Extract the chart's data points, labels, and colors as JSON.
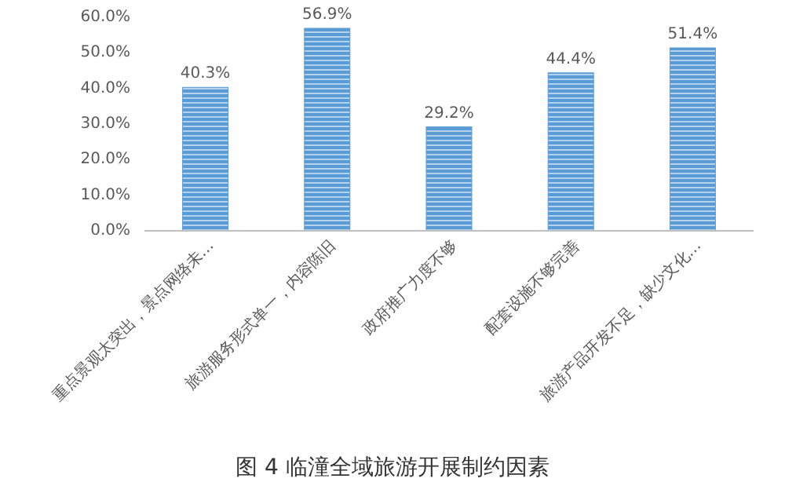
{
  "chart_data": {
    "type": "bar",
    "title": "图 4  临潼全域旅游开展制约因素",
    "categories": [
      "重点景观太突出，景点网络未…",
      "旅游服务形式单一，内容陈旧",
      "政府推广力度不够",
      "配套设施不够完善",
      "旅游产品开发不足，缺少文化…"
    ],
    "values": [
      40.3,
      56.9,
      29.2,
      44.4,
      51.4
    ],
    "value_labels": [
      "40.3%",
      "56.9%",
      "29.2%",
      "44.4%",
      "51.4%"
    ],
    "color": "#5b9bd5",
    "ylim": [
      0,
      60
    ],
    "yticks": [
      {
        "value": 0,
        "label": "0.0%"
      },
      {
        "value": 10,
        "label": "10.0%"
      },
      {
        "value": 20,
        "label": "20.0%"
      },
      {
        "value": 30,
        "label": "30.0%"
      },
      {
        "value": 40,
        "label": "40.0%"
      },
      {
        "value": 50,
        "label": "50.0%"
      },
      {
        "value": 60,
        "label": "60.0%"
      }
    ],
    "grid": false
  }
}
